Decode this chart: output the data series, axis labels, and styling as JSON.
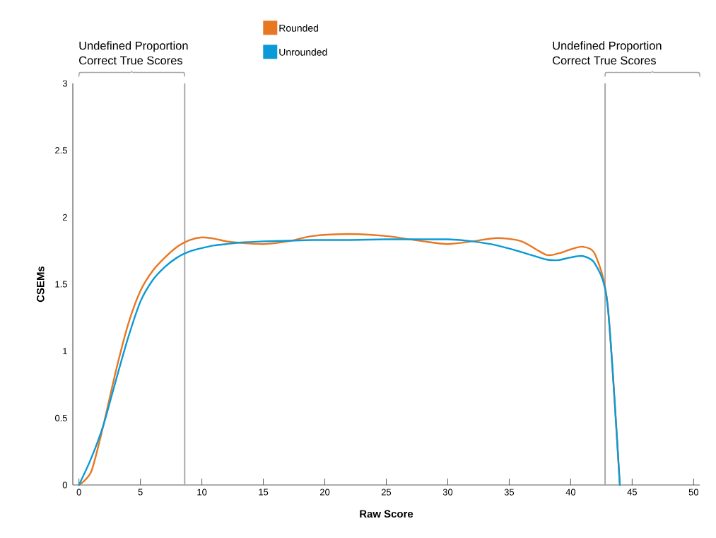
{
  "chart_data": {
    "type": "line",
    "xlabel": "Raw Score",
    "ylabel": "CSEMs",
    "annotations": [
      "Undefined Proportion\nCorrect True Scores",
      "Undefined Proportion\nCorrect True Scores"
    ],
    "x": [
      0,
      1,
      2,
      3,
      4,
      5,
      6,
      7,
      8,
      9,
      10,
      11,
      12,
      13,
      15,
      17,
      19,
      22,
      25,
      28,
      30,
      32,
      34,
      36,
      38,
      39,
      40,
      41,
      42,
      43,
      44
    ],
    "series": [
      {
        "name": "Rounded",
        "color": "#e87722",
        "values": [
          0,
          0.1,
          0.45,
          0.85,
          1.2,
          1.45,
          1.6,
          1.7,
          1.78,
          1.83,
          1.85,
          1.84,
          1.82,
          1.81,
          1.8,
          1.82,
          1.86,
          1.875,
          1.86,
          1.82,
          1.8,
          1.82,
          1.845,
          1.82,
          1.72,
          1.73,
          1.76,
          1.78,
          1.72,
          1.35,
          0
        ]
      },
      {
        "name": "Unrounded",
        "color": "#0b9ad6",
        "values": [
          0,
          0.2,
          0.45,
          0.78,
          1.1,
          1.37,
          1.53,
          1.63,
          1.7,
          1.745,
          1.77,
          1.79,
          1.8,
          1.81,
          1.82,
          1.825,
          1.83,
          1.83,
          1.835,
          1.835,
          1.835,
          1.82,
          1.79,
          1.74,
          1.685,
          1.68,
          1.7,
          1.71,
          1.65,
          1.35,
          0
        ]
      }
    ],
    "xlim": [
      -0.5,
      50.5
    ],
    "ylim": [
      0,
      3
    ],
    "xticks": [
      0,
      5,
      10,
      15,
      20,
      25,
      30,
      35,
      40,
      45,
      50
    ],
    "yticks": [
      0,
      0.5,
      1,
      1.5,
      2,
      2.5,
      3
    ],
    "ref_lines": [
      {
        "axis": "x",
        "value": 8.6,
        "color": "#a7a9ac"
      },
      {
        "axis": "x",
        "value": 42.8,
        "color": "#a7a9ac"
      }
    ],
    "legend": "top",
    "marker": "none",
    "line_style": "solid"
  }
}
